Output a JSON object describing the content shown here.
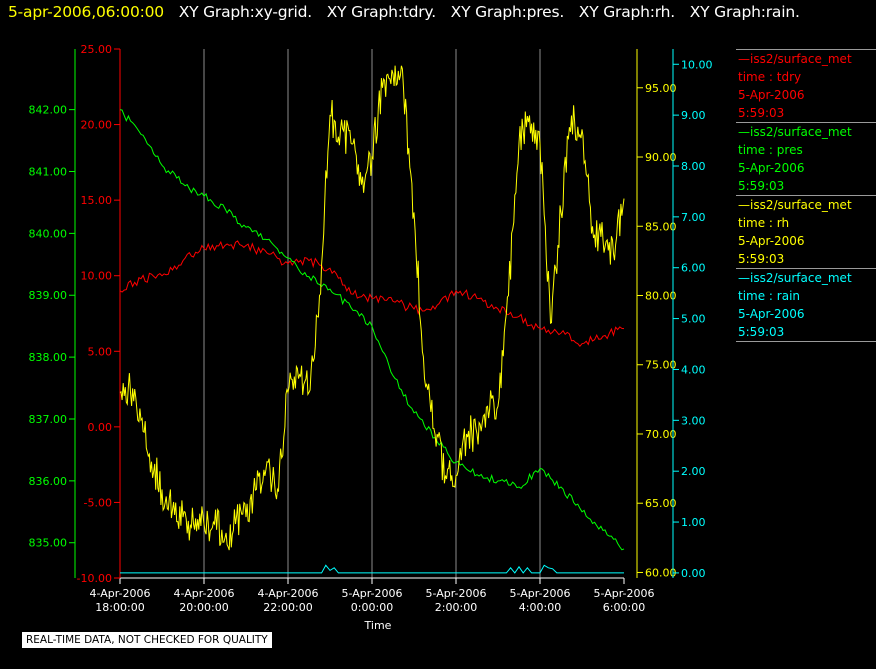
{
  "header": {
    "timestamp": "5-apr-2006,06:00:00",
    "timestamp_color": "#ffff00",
    "graphs": [
      "XY Graph:xy-grid.",
      "XY Graph:tdry.",
      "XY Graph:pres.",
      "XY Graph:rh.",
      "XY Graph:rain."
    ]
  },
  "legend": [
    {
      "lines": [
        "—iss2/surface_met",
        "time : tdry",
        "5-Apr-2006",
        "5:59:03"
      ],
      "color": "#ff0000"
    },
    {
      "lines": [
        "—iss2/surface_met",
        "time : pres",
        "5-Apr-2006",
        "5:59:03"
      ],
      "color": "#00ff00"
    },
    {
      "lines": [
        "—iss2/surface_met",
        "time : rh",
        "5-Apr-2006",
        "5:59:03"
      ],
      "color": "#ffff00"
    },
    {
      "lines": [
        "—iss2/surface_met",
        "time : rain",
        "5-Apr-2006",
        "5:59:03"
      ],
      "color": "#00ffff"
    }
  ],
  "footer": {
    "quality_note": "REAL-TIME DATA, NOT CHECKED FOR QUALITY"
  },
  "chart_data": {
    "type": "line",
    "xlabel": "Time",
    "x_ticks": [
      {
        "line1": "4-Apr-2006",
        "line2": "18:00:00",
        "t": 0
      },
      {
        "line1": "4-Apr-2006",
        "line2": "20:00:00",
        "t": 2
      },
      {
        "line1": "4-Apr-2006",
        "line2": "22:00:00",
        "t": 4
      },
      {
        "line1": "5-Apr-2006",
        "line2": "0:00:00",
        "t": 6
      },
      {
        "line1": "5-Apr-2006",
        "line2": "2:00:00",
        "t": 8
      },
      {
        "line1": "5-Apr-2006",
        "line2": "4:00:00",
        "t": 10
      },
      {
        "line1": "5-Apr-2006",
        "line2": "6:00:00",
        "t": 12
      }
    ],
    "xlim": [
      0,
      12
    ],
    "grid": "vertical",
    "axes": {
      "pres": {
        "ticks": [
          "835.00",
          "836.00",
          "837.00",
          "838.00",
          "839.00",
          "840.00",
          "841.00",
          "842.00"
        ],
        "ylim": [
          834.43,
          842.98
        ],
        "color": "#00ff00",
        "side": "left-outer"
      },
      "tdry": {
        "ticks": [
          "-10.00",
          "-5.00",
          "0.00",
          "5.00",
          "10.00",
          "15.00",
          "20.00",
          "25.00"
        ],
        "ylim": [
          -10,
          25
        ],
        "color": "#ff0000",
        "side": "left-inner"
      },
      "rh": {
        "ticks": [
          "60.00",
          "65.00",
          "70.00",
          "75.00",
          "80.00",
          "85.00",
          "90.00",
          "95.00"
        ],
        "ylim": [
          59.6,
          97.8
        ],
        "color": "#ffff00",
        "side": "right-inner"
      },
      "rain": {
        "ticks": [
          "0.00",
          "1.00",
          "2.00",
          "3.00",
          "4.00",
          "5.00",
          "6.00",
          "7.00",
          "8.00",
          "9.00",
          "10.00"
        ],
        "ylim": [
          -0.1,
          10.3
        ],
        "color": "#00ffff",
        "side": "right-outer"
      }
    },
    "series": [
      {
        "name": "tdry",
        "axis": "tdry",
        "color": "#ff0000",
        "x": [
          0,
          0.5,
          1,
          1.5,
          2,
          2.5,
          3,
          3.5,
          4,
          4.5,
          5,
          5.5,
          6,
          6.5,
          7,
          7.5,
          8,
          8.5,
          9,
          9.5,
          10,
          10.5,
          11,
          11.5,
          12
        ],
        "values": [
          9.0,
          9.8,
          10.0,
          11.0,
          11.8,
          12.0,
          12.0,
          11.5,
          10.8,
          11.0,
          10.5,
          8.8,
          8.5,
          8.3,
          7.8,
          7.8,
          9.0,
          8.5,
          7.8,
          7.3,
          6.5,
          6.2,
          5.5,
          6.0,
          6.5
        ]
      },
      {
        "name": "pres",
        "axis": "pres",
        "color": "#00ff00",
        "x": [
          0,
          0.5,
          1,
          1.5,
          2,
          2.5,
          3,
          3.5,
          4,
          4.5,
          5,
          5.5,
          6,
          6.5,
          7,
          7.5,
          8,
          8.5,
          9,
          9.5,
          10,
          10.5,
          11,
          11.5,
          12
        ],
        "values": [
          842.0,
          841.6,
          841.1,
          840.8,
          840.6,
          840.4,
          840.1,
          839.9,
          839.6,
          839.3,
          839.1,
          838.8,
          838.5,
          837.7,
          837.1,
          836.7,
          836.3,
          836.1,
          836.0,
          835.9,
          836.2,
          835.9,
          835.5,
          835.2,
          834.9
        ]
      },
      {
        "name": "rh",
        "axis": "rh",
        "color": "#ffff00",
        "x": [
          0,
          0.25,
          0.5,
          0.75,
          1,
          1.25,
          1.5,
          1.75,
          2,
          2.25,
          2.5,
          2.75,
          3,
          3.25,
          3.5,
          3.75,
          4,
          4.25,
          4.5,
          4.75,
          5,
          5.25,
          5.5,
          5.75,
          6,
          6.25,
          6.5,
          6.75,
          7,
          7.25,
          7.5,
          7.75,
          8,
          8.25,
          8.5,
          8.75,
          9,
          9.25,
          9.5,
          9.75,
          10,
          10.25,
          10.5,
          10.75,
          11,
          11.25,
          11.5,
          11.75,
          12
        ],
        "values": [
          73,
          73,
          71,
          68,
          66,
          64.5,
          64,
          63.5,
          63.5,
          63.5,
          62.5,
          63.5,
          64,
          66,
          68,
          66,
          73,
          74,
          73,
          80,
          93,
          92,
          91,
          88,
          90,
          95,
          96,
          95,
          86,
          74,
          70,
          67,
          67,
          70,
          70,
          72,
          72,
          80,
          91,
          93,
          91,
          78,
          86,
          93,
          92,
          85,
          84,
          83,
          87
        ]
      },
      {
        "name": "rain",
        "axis": "rain",
        "color": "#00ffff",
        "x": [
          0,
          4.8,
          4.9,
          5.0,
          5.1,
          5.2,
          9.2,
          9.3,
          9.4,
          9.5,
          9.6,
          9.7,
          9.8,
          9.9,
          10.0,
          10.1,
          10.2,
          10.3,
          10.4,
          12
        ],
        "values": [
          0,
          0,
          0.15,
          0.05,
          0.1,
          0,
          0,
          0.1,
          0,
          0.12,
          0,
          0.1,
          0,
          0,
          0,
          0.15,
          0.1,
          0.08,
          0,
          0
        ]
      }
    ]
  }
}
